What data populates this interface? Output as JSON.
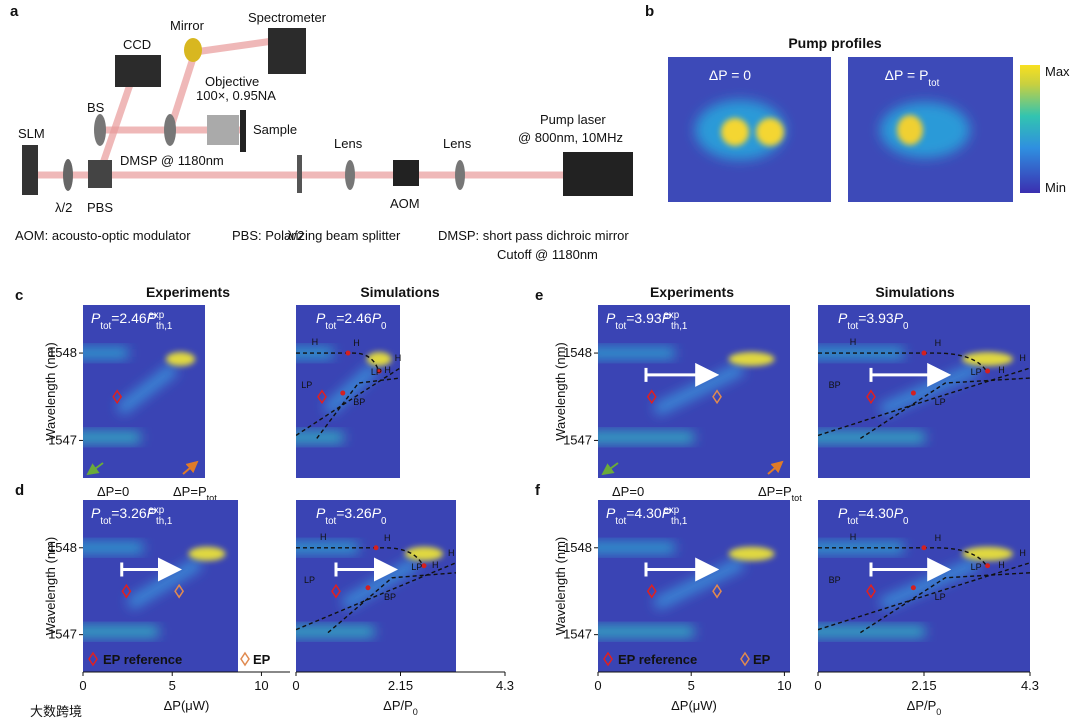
{
  "panel_labels": [
    "a",
    "b",
    "c",
    "d",
    "e",
    "f"
  ],
  "setup": {
    "parts": [
      "SLM",
      "λ/2",
      "PBS",
      "CCD",
      "BS",
      "Mirror",
      "Spectrometer",
      "Objective",
      "100×, 0.95NA",
      "Sample",
      "DMSP @ 1180nm",
      "Lens",
      "λ/2",
      "AOM",
      "Lens",
      "Pump laser",
      "@ 800nm, 10MHz"
    ],
    "notes": [
      "AOM: acousto-optic modulator",
      "PBS: Polarizing beam splitter",
      "DMSP: short pass dichroic mirror",
      "Cutoff @ 1180nm"
    ]
  },
  "pump": {
    "title": "Pump profiles",
    "maps": [
      [
        "ΔP = 0"
      ],
      [
        "ΔP = P",
        "tot"
      ]
    ],
    "colorbar": [
      "Max",
      "Min"
    ]
  },
  "columns": [
    "Experiments",
    "Simulations"
  ],
  "y_label": "Wavelength (nm)",
  "ylim": [
    1546.57,
    1548.55
  ],
  "yticks": [
    1547,
    1548
  ],
  "panels": [
    {
      "exp_title": [
        "P",
        "tot",
        "=2.46",
        "P",
        "th,1",
        "exp"
      ],
      "sim_title": [
        "P",
        "tot",
        "=2.46",
        "P",
        "0"
      ],
      "corner": [
        [
          "ΔP=0"
        ],
        [
          "ΔP=P",
          "tot"
        ]
      ],
      "sim_marks": [
        "H",
        "LP",
        "H",
        "H",
        "LP",
        "BP",
        "H"
      ]
    },
    {
      "exp_title": [
        "P",
        "tot",
        "=3.26",
        "P",
        "th,1",
        "exp"
      ],
      "sim_title": [
        "P",
        "tot",
        "=3.26",
        "P",
        "0"
      ],
      "legend": [
        "EP reference",
        "EP"
      ],
      "sim_marks": [
        "H",
        "LP",
        "H",
        "H",
        "LP",
        "BP",
        "H"
      ],
      "exp_axis": {
        "label": [
          "ΔP(μW)"
        ],
        "xlim": [
          0,
          11.6
        ],
        "xticks": [
          0,
          5,
          10
        ]
      },
      "sim_axis": {
        "label": [
          "ΔP/P",
          "0"
        ],
        "xlim": [
          0,
          4.3
        ],
        "xticks": [
          0,
          2.15,
          4.3
        ]
      }
    },
    {
      "exp_title": [
        "P",
        "tot",
        "=3.93",
        "P",
        "th,1",
        "exp"
      ],
      "sim_title": [
        "P",
        "tot",
        "=3.93",
        "P",
        "0"
      ],
      "corner": [
        [
          "ΔP=0"
        ],
        [
          "ΔP=P",
          "tot"
        ]
      ],
      "sim_marks": [
        "H",
        "LP",
        "H",
        "H",
        "BP",
        "LP",
        "H"
      ]
    },
    {
      "exp_title": [
        "P",
        "tot",
        "=4.30",
        "P",
        "th,1",
        "exp"
      ],
      "sim_title": [
        "P",
        "tot",
        "=4.30",
        "P",
        "0"
      ],
      "legend": [
        "EP reference",
        "EP"
      ],
      "sim_marks": [
        "H",
        "LP",
        "H",
        "H",
        "BP",
        "LP",
        "H"
      ],
      "exp_axis": {
        "label": [
          "ΔP(μW)"
        ],
        "xlim": [
          0,
          10.3
        ],
        "xticks": [
          0,
          5,
          10
        ]
      },
      "sim_axis": {
        "label": [
          "ΔP/P",
          "0"
        ],
        "xlim": [
          0,
          4.3
        ],
        "xticks": [
          0,
          2.15,
          4.3
        ]
      }
    }
  ],
  "watermark": "大数跨境"
}
